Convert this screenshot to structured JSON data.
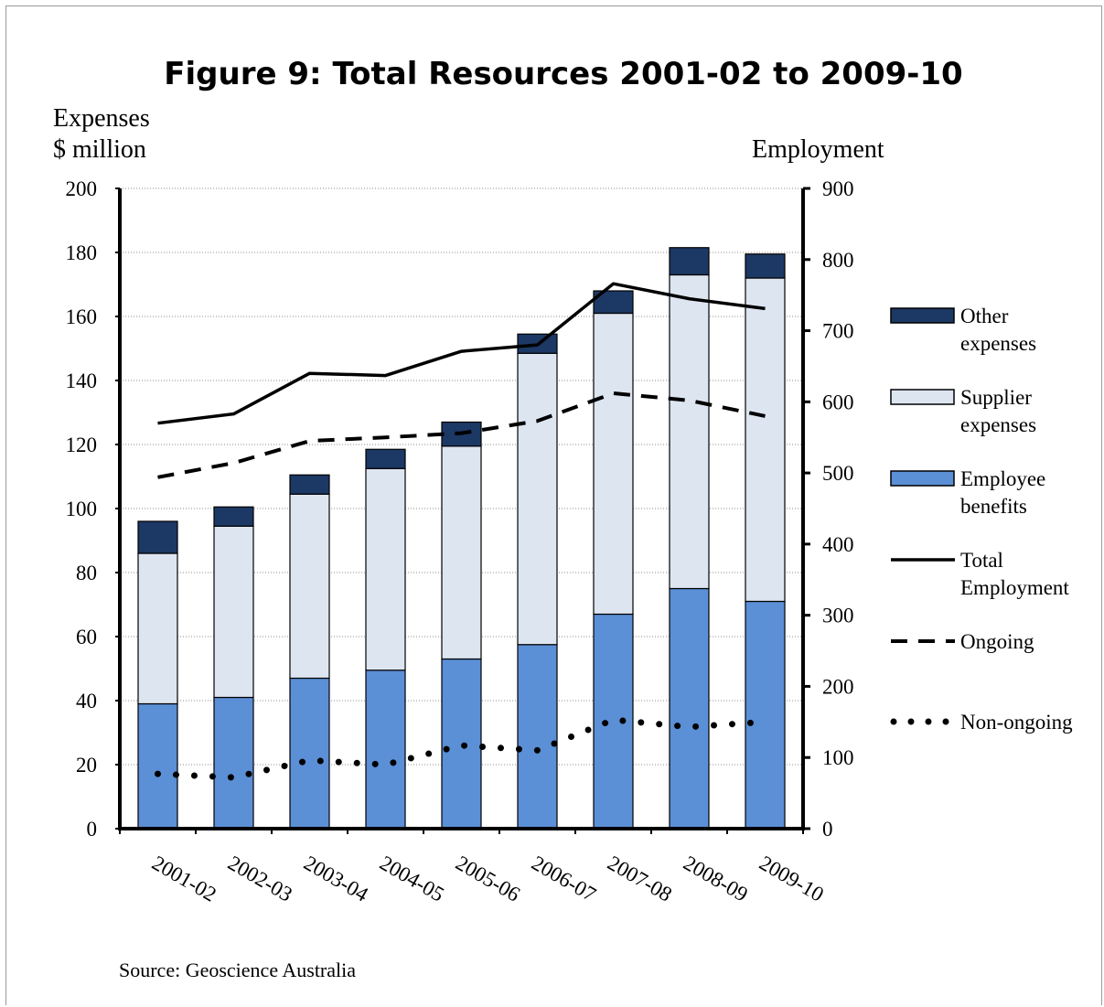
{
  "chart_data": {
    "type": "bar",
    "title": "Figure 9: Total Resources 2001-02 to 2009-10",
    "ylabel_left": [
      "Expenses",
      "$ million"
    ],
    "ylabel_right": "Employment",
    "ylim_left": [
      0,
      200
    ],
    "ylim_right": [
      0,
      900
    ],
    "yticks_left": [
      "0",
      "20",
      "40",
      "60",
      "80",
      "100",
      "120",
      "140",
      "160",
      "180",
      "200"
    ],
    "yticks_right": [
      "0",
      "100",
      "200",
      "300",
      "400",
      "500",
      "600",
      "700",
      "800",
      "900"
    ],
    "categories": [
      "2001-02",
      "2002-03",
      "2003-04",
      "2004-05",
      "2005-06",
      "2006-07",
      "2007-08",
      "2008-09",
      "2009-10"
    ],
    "bar_series": [
      {
        "name": "Employee benefits",
        "color": "#5b8fd6",
        "values": [
          39,
          41,
          47,
          49.5,
          53,
          57.5,
          67,
          75,
          71
        ]
      },
      {
        "name": "Supplier expenses",
        "color": "#dde5f1",
        "values": [
          47,
          53.5,
          57.5,
          63,
          66.5,
          91,
          94,
          98,
          101
        ]
      },
      {
        "name": "Other expenses",
        "color": "#1c3864",
        "values": [
          10,
          6,
          6,
          6,
          7.5,
          6,
          7,
          8.5,
          7.5
        ]
      }
    ],
    "line_series": [
      {
        "name": "Total Employment",
        "style": "solid",
        "values": [
          570,
          583,
          640,
          637,
          671,
          680,
          766,
          745,
          731
        ]
      },
      {
        "name": "Ongoing",
        "style": "dashed",
        "values": [
          494,
          514,
          545,
          550,
          556,
          573,
          612,
          602,
          580
        ]
      },
      {
        "name": "Non-ongoing",
        "style": "dotted",
        "values": [
          77,
          72,
          96,
          90,
          117,
          110,
          153,
          143,
          150
        ]
      }
    ],
    "legend": [
      {
        "label": [
          "Other",
          "expenses"
        ],
        "kind": "box",
        "color": "#1c3864"
      },
      {
        "label": [
          "Supplier",
          "expenses"
        ],
        "kind": "box",
        "color": "#dde5f1"
      },
      {
        "label": [
          "Employee",
          "benefits"
        ],
        "kind": "box",
        "color": "#5b8fd6"
      },
      {
        "label": [
          "Total",
          "Employment"
        ],
        "kind": "line",
        "style": "solid"
      },
      {
        "label": [
          "Ongoing"
        ],
        "kind": "line",
        "style": "dashed"
      },
      {
        "label": [
          "Non-ongoing"
        ],
        "kind": "line",
        "style": "dotted"
      }
    ],
    "legend_position": "right",
    "grid": "horizontal-dotted"
  },
  "source": "Source:  Geoscience Australia"
}
